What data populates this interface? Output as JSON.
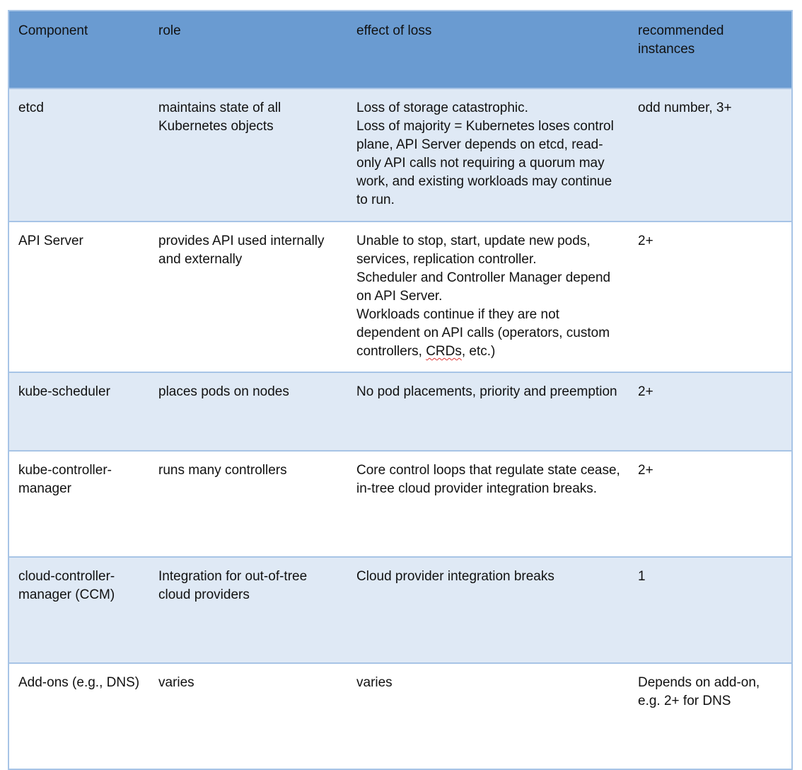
{
  "headers": [
    "Component",
    "role",
    "effect of loss",
    "recommended instances"
  ],
  "rows": [
    {
      "component": "etcd",
      "role": "maintains state of all Kubernetes objects",
      "effect": [
        "Loss of storage catastrophic.",
        "Loss of majority = Kubernetes loses control plane, API Server depends on etcd, read-only API calls not requiring a quorum may work, and existing workloads may continue to run."
      ],
      "instances": "odd number, 3+"
    },
    {
      "component": "API Server",
      "role": "provides API used internally and externally",
      "effect": [
        "Unable to stop, start, update new pods, services, replication controller.",
        "Scheduler and Controller Manager depend on API Server.",
        "Workloads continue if they are not dependent on API calls (operators, custom controllers, CRDs, etc.)"
      ],
      "instances": "2+"
    },
    {
      "component": "kube-scheduler",
      "role": "places pods on nodes",
      "effect": [
        "No pod placements, priority and preemption"
      ],
      "instances": "2+"
    },
    {
      "component": "kube-controller-manager",
      "role": "runs many controllers",
      "effect": [
        "Core control loops that regulate state cease, in-tree cloud provider integration breaks."
      ],
      "instances": "2+"
    },
    {
      "component": "cloud-controller-manager (CCM)",
      "role": "Integration for out-of-tree cloud providers",
      "effect": [
        "Cloud provider integration breaks"
      ],
      "instances": "1"
    },
    {
      "component": "Add-ons (e.g., DNS)",
      "role": "varies",
      "effect": [
        "varies"
      ],
      "instances": "Depends on add-on, e.g. 2+ for DNS"
    }
  ],
  "colors": {
    "header_bg": "#6a9bd1",
    "row_alt_bg": "#dfe9f5",
    "border": "#a7c4e6"
  }
}
